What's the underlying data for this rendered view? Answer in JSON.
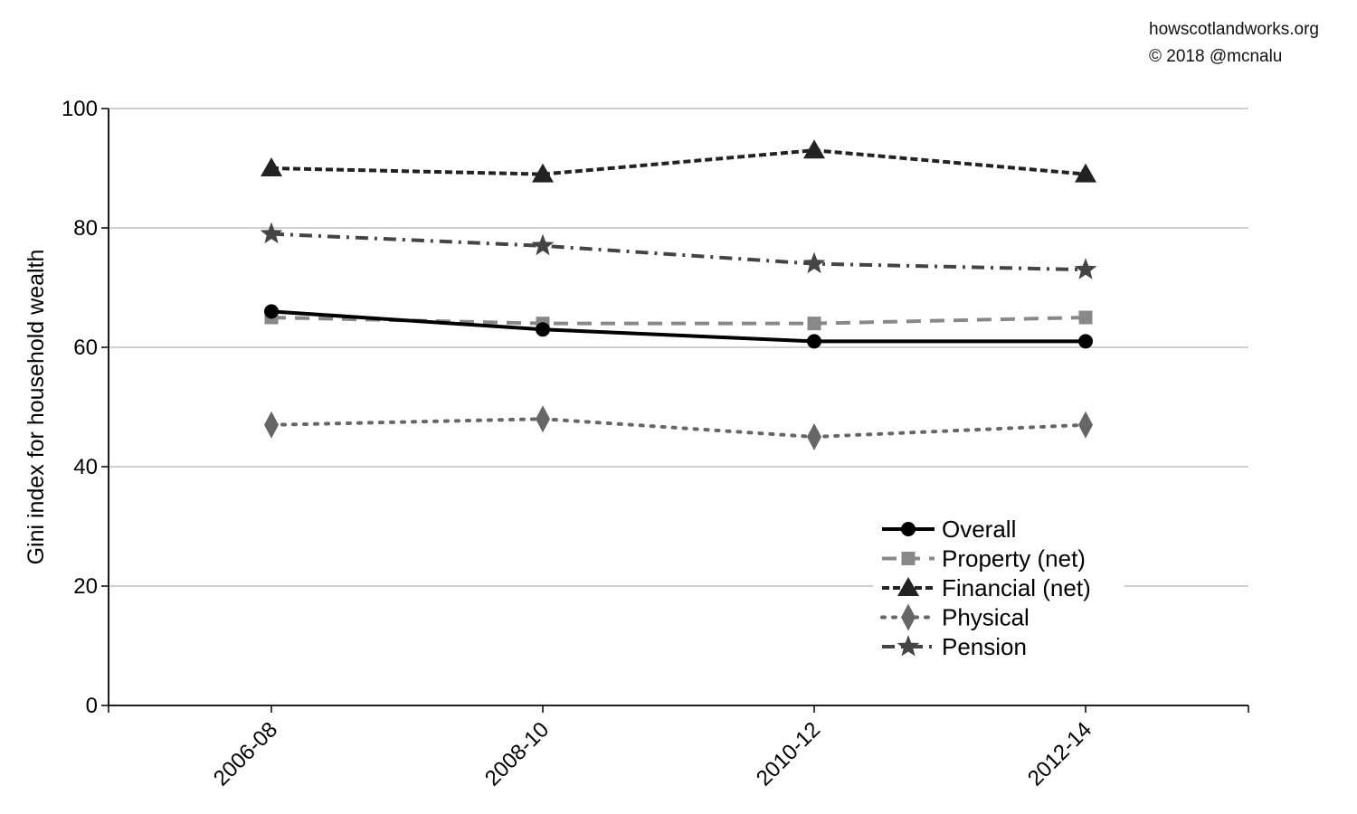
{
  "credits": {
    "site": "howscotlandworks.org",
    "copyright": "© 2018  @mcnalu"
  },
  "colors": {
    "overall": "#000000",
    "property": "#888888",
    "financial": "#222222",
    "physical": "#666666",
    "pension": "#444444",
    "grid": "#b3b3b3"
  },
  "chart_data": {
    "type": "line",
    "title": "",
    "xlabel": "",
    "ylabel": "Gini index for household wealth",
    "categories": [
      "2006-08",
      "2008-10",
      "2010-12",
      "2012-14"
    ],
    "ylim": [
      0,
      100
    ],
    "yticks": [
      0,
      20,
      40,
      60,
      80,
      100
    ],
    "grid": true,
    "legend_position": "lower-right",
    "series": [
      {
        "name": "Overall",
        "values": [
          66,
          63,
          61,
          61
        ],
        "marker": "circle",
        "dash": "solid",
        "color": "#000000"
      },
      {
        "name": "Property (net)",
        "values": [
          65,
          64,
          64,
          65
        ],
        "marker": "square",
        "dash": "dashed",
        "color": "#888888"
      },
      {
        "name": "Financial (net)",
        "values": [
          90,
          89,
          93,
          89
        ],
        "marker": "triangle",
        "dash": "short-dashed",
        "color": "#222222"
      },
      {
        "name": "Physical",
        "values": [
          47,
          48,
          45,
          47
        ],
        "marker": "diamond",
        "dash": "dotted",
        "color": "#666666"
      },
      {
        "name": "Pension",
        "values": [
          79,
          77,
          74,
          73
        ],
        "marker": "star",
        "dash": "dash-dot",
        "color": "#444444"
      }
    ]
  }
}
